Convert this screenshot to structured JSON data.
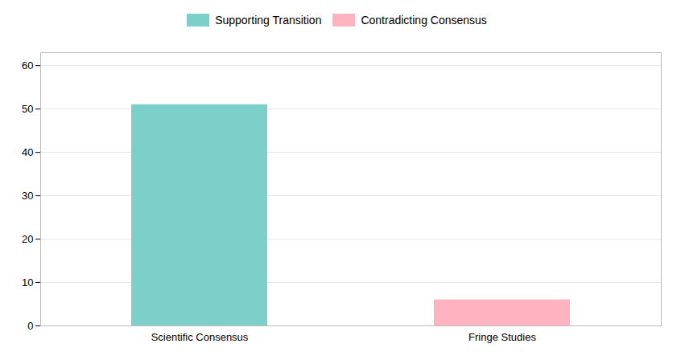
{
  "chart_data": {
    "type": "bar",
    "categories": [
      "Scientific Consensus",
      "Fringe Studies"
    ],
    "series": [
      {
        "name": "Supporting Transition",
        "color": "#7DCFCA",
        "values": [
          51,
          null
        ]
      },
      {
        "name": "Contradicting Consensus",
        "color": "#FFB3C1",
        "values": [
          null,
          6
        ]
      }
    ],
    "ylim": [
      0,
      63
    ],
    "yticks": [
      0,
      10,
      20,
      30,
      40,
      50,
      60
    ],
    "grid": true,
    "legend": "top"
  }
}
